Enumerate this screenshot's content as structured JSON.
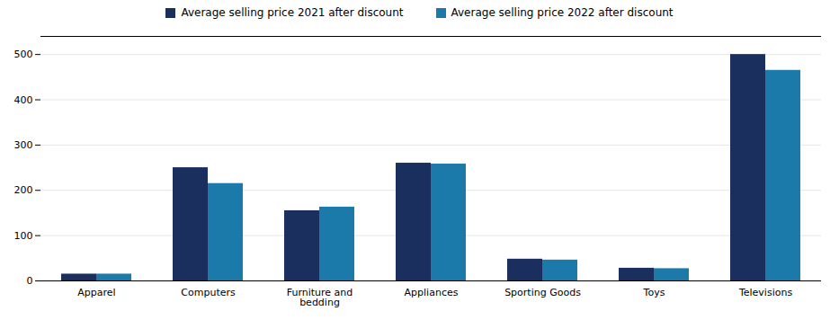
{
  "chart_data": {
    "type": "bar",
    "categories": [
      "Apparel",
      "Computers",
      "Furniture and\nbedding",
      "Appliances",
      "Sporting Goods",
      "Toys",
      "Televisions"
    ],
    "series": [
      {
        "name": "Average selling price 2021 after discount",
        "color": "#1b2f5e",
        "values": [
          15,
          250,
          155,
          260,
          48,
          28,
          500
        ]
      },
      {
        "name": "Average selling price 2022 after discount",
        "color": "#1c7aaa",
        "values": [
          15,
          215,
          163,
          258,
          46,
          27,
          465
        ]
      }
    ],
    "ylim": [
      0,
      540
    ],
    "yticks": [
      0,
      100,
      200,
      300,
      400,
      500
    ],
    "grid": true,
    "legend": "top"
  }
}
